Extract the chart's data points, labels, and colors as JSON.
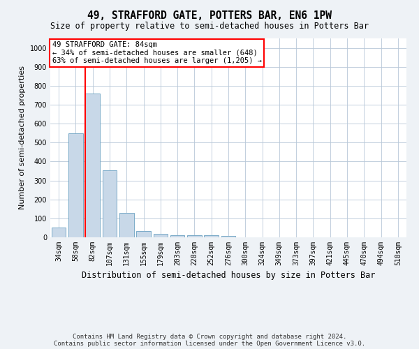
{
  "title": "49, STRAFFORD GATE, POTTERS BAR, EN6 1PW",
  "subtitle": "Size of property relative to semi-detached houses in Potters Bar",
  "xlabel": "Distribution of semi-detached houses by size in Potters Bar",
  "ylabel": "Number of semi-detached properties",
  "bar_labels": [
    "34sqm",
    "58sqm",
    "82sqm",
    "107sqm",
    "131sqm",
    "155sqm",
    "179sqm",
    "203sqm",
    "228sqm",
    "252sqm",
    "276sqm",
    "300sqm",
    "324sqm",
    "349sqm",
    "373sqm",
    "397sqm",
    "421sqm",
    "445sqm",
    "470sqm",
    "494sqm",
    "518sqm"
  ],
  "bar_values": [
    50,
    550,
    760,
    355,
    128,
    35,
    18,
    10,
    10,
    10,
    8,
    0,
    0,
    0,
    0,
    0,
    0,
    0,
    0,
    0,
    0
  ],
  "bar_color": "#c8d8e8",
  "bar_edge_color": "#7aaac8",
  "vline_color": "red",
  "property_size": "84sqm",
  "property_name": "49 STRAFFORD GATE",
  "pct_smaller": 34,
  "count_smaller": 648,
  "pct_larger": 63,
  "count_larger": 1205,
  "ylim": [
    0,
    1050
  ],
  "yticks": [
    0,
    100,
    200,
    300,
    400,
    500,
    600,
    700,
    800,
    900,
    1000
  ],
  "annotation_box_color": "white",
  "annotation_box_edge": "red",
  "footer": "Contains HM Land Registry data © Crown copyright and database right 2024.\nContains public sector information licensed under the Open Government Licence v3.0.",
  "bg_color": "#eef2f6",
  "plot_bg_color": "white",
  "grid_color": "#b8c8d8",
  "title_fontsize": 10.5,
  "subtitle_fontsize": 8.5,
  "tick_fontsize": 7,
  "ylabel_fontsize": 8,
  "xlabel_fontsize": 8.5,
  "footer_fontsize": 6.5
}
